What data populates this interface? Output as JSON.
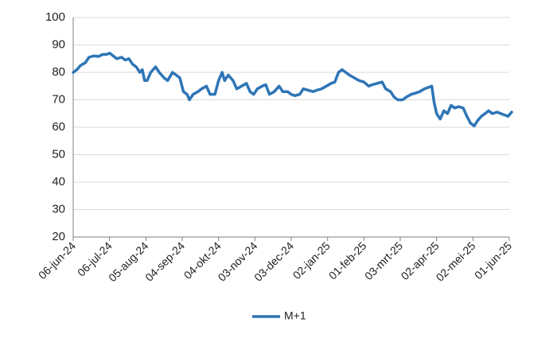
{
  "chart_data": {
    "type": "line",
    "title": "",
    "xlabel": "",
    "ylabel": "",
    "ylim": [
      20,
      100
    ],
    "yticks": [
      20,
      30,
      40,
      50,
      60,
      70,
      80,
      90,
      100
    ],
    "grid": "horizontal",
    "legend_position": "bottom-center",
    "x_tick_labels": [
      "06-jun-24",
      "06-jul-24",
      "05-aug-24",
      "04-sep-24",
      "04-okt-24",
      "03-nov-24",
      "03-dec-24",
      "02-jan-25",
      "01-feb-25",
      "03-mrt-25",
      "02-apr-25",
      "02-mei-25",
      "01-jun-25"
    ],
    "series": [
      {
        "name": "M+1",
        "color": "#2e75b6",
        "points": [
          [
            "2024-06-06",
            80
          ],
          [
            "2024-06-09",
            81
          ],
          [
            "2024-06-12",
            82.5
          ],
          [
            "2024-06-16",
            83.5
          ],
          [
            "2024-06-19",
            85.5
          ],
          [
            "2024-06-23",
            86
          ],
          [
            "2024-06-27",
            85.8
          ],
          [
            "2024-06-30",
            86.5
          ],
          [
            "2024-07-04",
            86.6
          ],
          [
            "2024-07-06",
            87
          ],
          [
            "2024-07-09",
            86
          ],
          [
            "2024-07-12",
            85
          ],
          [
            "2024-07-16",
            85.5
          ],
          [
            "2024-07-19",
            84.5
          ],
          [
            "2024-07-22",
            85
          ],
          [
            "2024-07-25",
            83
          ],
          [
            "2024-07-28",
            82
          ],
          [
            "2024-07-31",
            80
          ],
          [
            "2024-08-02",
            81
          ],
          [
            "2024-08-04",
            77
          ],
          [
            "2024-08-06",
            77
          ],
          [
            "2024-08-09",
            80
          ],
          [
            "2024-08-13",
            82
          ],
          [
            "2024-08-16",
            80
          ],
          [
            "2024-08-20",
            78
          ],
          [
            "2024-08-23",
            77
          ],
          [
            "2024-08-27",
            80
          ],
          [
            "2024-08-30",
            79
          ],
          [
            "2024-09-02",
            78
          ],
          [
            "2024-09-05",
            73
          ],
          [
            "2024-09-08",
            72
          ],
          [
            "2024-09-10",
            70
          ],
          [
            "2024-09-13",
            72
          ],
          [
            "2024-09-17",
            73
          ],
          [
            "2024-09-20",
            74
          ],
          [
            "2024-09-24",
            75
          ],
          [
            "2024-09-27",
            72
          ],
          [
            "2024-10-01",
            72
          ],
          [
            "2024-10-04",
            77
          ],
          [
            "2024-10-07",
            80
          ],
          [
            "2024-10-09",
            77
          ],
          [
            "2024-10-12",
            79
          ],
          [
            "2024-10-16",
            77
          ],
          [
            "2024-10-19",
            74
          ],
          [
            "2024-10-23",
            75
          ],
          [
            "2024-10-27",
            76
          ],
          [
            "2024-10-30",
            73
          ],
          [
            "2024-11-02",
            72
          ],
          [
            "2024-11-05",
            74
          ],
          [
            "2024-11-09",
            75
          ],
          [
            "2024-11-12",
            75.5
          ],
          [
            "2024-11-15",
            72
          ],
          [
            "2024-11-19",
            73
          ],
          [
            "2024-11-23",
            75
          ],
          [
            "2024-11-26",
            73
          ],
          [
            "2024-11-30",
            73
          ],
          [
            "2024-12-03",
            72
          ],
          [
            "2024-12-06",
            71.5
          ],
          [
            "2024-12-10",
            72
          ],
          [
            "2024-12-13",
            74
          ],
          [
            "2024-12-17",
            73.5
          ],
          [
            "2024-12-21",
            73
          ],
          [
            "2024-12-24",
            73.5
          ],
          [
            "2024-12-28",
            74
          ],
          [
            "2025-01-01",
            75
          ],
          [
            "2025-01-05",
            76
          ],
          [
            "2025-01-08",
            76.5
          ],
          [
            "2025-01-11",
            80
          ],
          [
            "2025-01-14",
            81
          ],
          [
            "2025-01-17",
            80
          ],
          [
            "2025-01-20",
            79
          ],
          [
            "2025-01-24",
            78
          ],
          [
            "2025-01-28",
            77
          ],
          [
            "2025-02-01",
            76.5
          ],
          [
            "2025-02-05",
            75
          ],
          [
            "2025-02-08",
            75.5
          ],
          [
            "2025-02-12",
            76
          ],
          [
            "2025-02-16",
            76.5
          ],
          [
            "2025-02-19",
            74
          ],
          [
            "2025-02-23",
            73
          ],
          [
            "2025-02-26",
            71
          ],
          [
            "2025-03-01",
            70
          ],
          [
            "2025-03-05",
            70
          ],
          [
            "2025-03-08",
            71
          ],
          [
            "2025-03-12",
            72
          ],
          [
            "2025-03-16",
            72.5
          ],
          [
            "2025-03-19",
            73
          ],
          [
            "2025-03-23",
            74
          ],
          [
            "2025-03-26",
            74.5
          ],
          [
            "2025-03-29",
            75
          ],
          [
            "2025-03-31",
            69
          ],
          [
            "2025-04-02",
            65
          ],
          [
            "2025-04-05",
            63
          ],
          [
            "2025-04-08",
            66
          ],
          [
            "2025-04-11",
            65
          ],
          [
            "2025-04-14",
            68
          ],
          [
            "2025-04-17",
            67
          ],
          [
            "2025-04-20",
            67.5
          ],
          [
            "2025-04-24",
            67
          ],
          [
            "2025-04-27",
            64
          ],
          [
            "2025-04-30",
            61.5
          ],
          [
            "2025-05-03",
            60.5
          ],
          [
            "2025-05-06",
            62.5
          ],
          [
            "2025-05-09",
            64
          ],
          [
            "2025-05-12",
            65
          ],
          [
            "2025-05-15",
            66
          ],
          [
            "2025-05-18",
            65
          ],
          [
            "2025-05-22",
            65.5
          ],
          [
            "2025-05-25",
            65
          ],
          [
            "2025-05-28",
            64.5
          ],
          [
            "2025-05-31",
            64
          ],
          [
            "2025-06-03",
            65.5
          ]
        ]
      }
    ]
  }
}
